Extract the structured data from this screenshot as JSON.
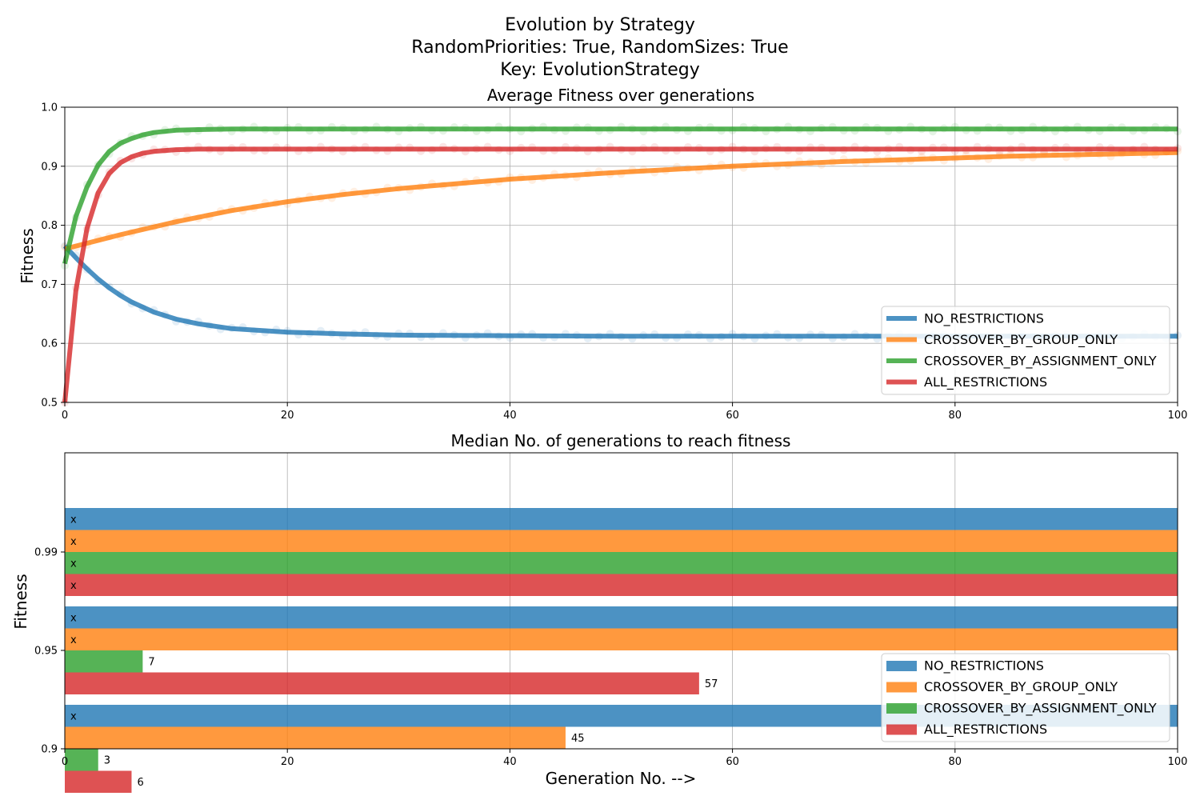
{
  "suptitle": {
    "lines": [
      "Evolution by Strategy",
      "RandomPriorities: True, RandomSizes: True",
      "Key: EvolutionStrategy"
    ]
  },
  "colors": {
    "NO_RESTRICTIONS": "#1f77b4",
    "CROSSOVER_BY_GROUP_ONLY": "#ff7f0e",
    "CROSSOVER_BY_ASSIGNMENT_ONLY": "#2ca02c",
    "ALL_RESTRICTIONS": "#d62728"
  },
  "chart_data": [
    {
      "type": "line",
      "title": "Average Fitness over generations",
      "xlabel": "",
      "ylabel": "Fitness",
      "xlim": [
        0,
        100
      ],
      "ylim": [
        0.5,
        1.0
      ],
      "xticks": [
        "0",
        "20",
        "40",
        "60",
        "80",
        "100"
      ],
      "yticks": [
        "0.5",
        "0.6",
        "0.7",
        "0.8",
        "0.9",
        "1.0"
      ],
      "grid": true,
      "legend_position": "lower-right",
      "description_of_series": "smooth fitted curves, with faint raw points behind them",
      "series": [
        {
          "name": "NO_RESTRICTIONS",
          "x": [
            0,
            1,
            2,
            3,
            4,
            5,
            6,
            8,
            10,
            12,
            15,
            20,
            25,
            30,
            40,
            50,
            60,
            70,
            80,
            90,
            100
          ],
          "values": [
            0.765,
            0.745,
            0.726,
            0.709,
            0.694,
            0.681,
            0.67,
            0.653,
            0.641,
            0.633,
            0.625,
            0.619,
            0.616,
            0.614,
            0.613,
            0.612,
            0.612,
            0.612,
            0.612,
            0.612,
            0.612
          ]
        },
        {
          "name": "CROSSOVER_BY_GROUP_ONLY",
          "x": [
            0,
            5,
            10,
            15,
            20,
            25,
            30,
            35,
            40,
            45,
            50,
            55,
            60,
            65,
            70,
            75,
            80,
            85,
            90,
            95,
            100
          ],
          "values": [
            0.76,
            0.784,
            0.806,
            0.825,
            0.84,
            0.852,
            0.862,
            0.87,
            0.878,
            0.884,
            0.89,
            0.895,
            0.9,
            0.904,
            0.908,
            0.911,
            0.914,
            0.917,
            0.919,
            0.921,
            0.923
          ]
        },
        {
          "name": "CROSSOVER_BY_ASSIGNMENT_ONLY",
          "x": [
            0,
            1,
            2,
            3,
            4,
            5,
            6,
            7,
            8,
            10,
            12,
            15,
            20,
            30,
            40,
            60,
            80,
            100
          ],
          "values": [
            0.735,
            0.815,
            0.865,
            0.902,
            0.925,
            0.939,
            0.947,
            0.953,
            0.957,
            0.961,
            0.962,
            0.963,
            0.963,
            0.963,
            0.963,
            0.963,
            0.963,
            0.963
          ]
        },
        {
          "name": "ALL_RESTRICTIONS",
          "x": [
            0,
            1,
            2,
            3,
            4,
            5,
            6,
            7,
            8,
            10,
            12,
            15,
            20,
            40,
            60,
            80,
            100
          ],
          "values": [
            0.5,
            0.69,
            0.795,
            0.855,
            0.888,
            0.906,
            0.916,
            0.922,
            0.925,
            0.928,
            0.929,
            0.929,
            0.929,
            0.929,
            0.929,
            0.929,
            0.929
          ]
        }
      ]
    },
    {
      "type": "bar",
      "orientation": "horizontal",
      "title": "Median No. of generations to reach fitness",
      "xlabel": "Generation No. -->",
      "ylabel": "Fitness",
      "xlim": [
        0,
        100
      ],
      "xticks": [
        "0",
        "20",
        "40",
        "60",
        "80",
        "100"
      ],
      "categories": [
        "0.9",
        "0.95",
        "0.99"
      ],
      "grid": true,
      "legend_position": "lower-right",
      "not_reached_marker": "x",
      "series": [
        {
          "name": "NO_RESTRICTIONS",
          "values": [
            null,
            null,
            null
          ],
          "labels": [
            "x",
            "x",
            "x"
          ]
        },
        {
          "name": "CROSSOVER_BY_GROUP_ONLY",
          "values": [
            45,
            null,
            null
          ],
          "labels": [
            "45",
            "x",
            "x"
          ]
        },
        {
          "name": "CROSSOVER_BY_ASSIGNMENT_ONLY",
          "values": [
            3,
            7,
            null
          ],
          "labels": [
            "3",
            "7",
            "x"
          ]
        },
        {
          "name": "ALL_RESTRICTIONS",
          "values": [
            6,
            57,
            null
          ],
          "labels": [
            "6",
            "57",
            "x"
          ]
        }
      ]
    }
  ]
}
